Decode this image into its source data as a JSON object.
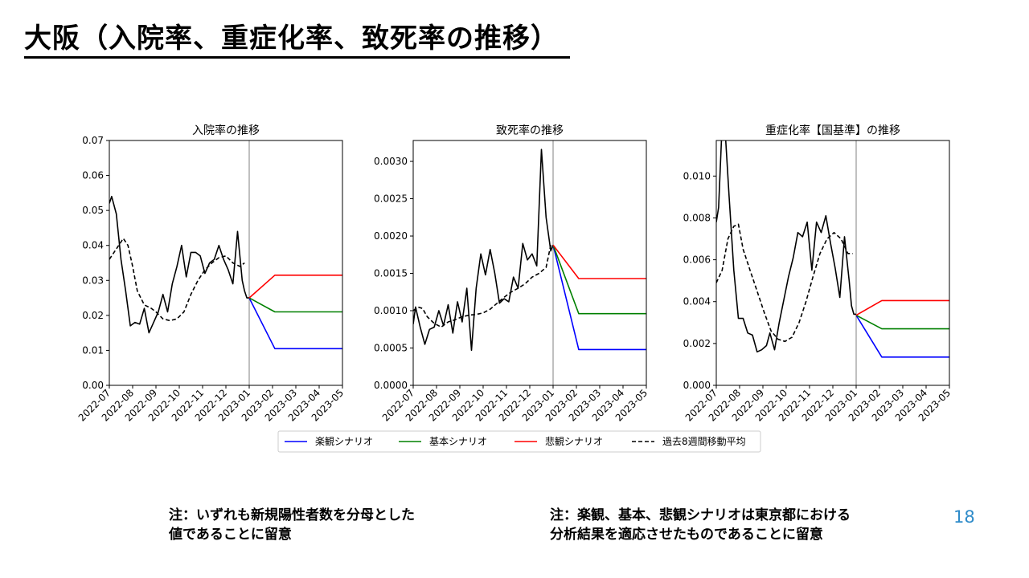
{
  "title": "大阪（入院率、重症化率、致死率の推移）",
  "notes": {
    "left_line1": "注：いずれも新規陽性者数を分母とした",
    "left_line2": "値であることに留意",
    "right_line1": "注：楽観、基本、悲観シナリオは東京都における",
    "right_line2": "分析結果を適応させたものであることに留意"
  },
  "page_number": "18",
  "legend": [
    {
      "label": "楽観シナリオ",
      "color": "#0000ff",
      "dash": false
    },
    {
      "label": "基本シナリオ",
      "color": "#008000",
      "dash": false
    },
    {
      "label": "悲観シナリオ",
      "color": "#ff0000",
      "dash": false
    },
    {
      "label": "過去8週間移動平均",
      "color": "#000000",
      "dash": true
    }
  ],
  "chart_data": [
    {
      "type": "line",
      "title": "入院率の推移",
      "x_ticks": [
        "2022-07",
        "2022-08",
        "2022-09",
        "2022-10",
        "2022-11",
        "2022-12",
        "2023-01",
        "2023-02",
        "2023-03",
        "2023-04",
        "2023-05"
      ],
      "ylim": [
        0,
        0.07
      ],
      "y_ticks": [
        "0.00",
        "0.01",
        "0.02",
        "0.03",
        "0.04",
        "0.05",
        "0.06",
        "0.07"
      ],
      "y_tick_values": [
        0,
        0.01,
        0.02,
        0.03,
        0.04,
        0.05,
        0.06,
        0.07
      ],
      "vline_x": 6.0,
      "series": [
        {
          "role": "actual",
          "color": "#000000",
          "x": [
            0,
            0.1,
            0.3,
            0.5,
            0.7,
            0.9,
            1.1,
            1.3,
            1.5,
            1.7,
            1.9,
            2.1,
            2.3,
            2.5,
            2.7,
            2.9,
            3.1,
            3.3,
            3.5,
            3.7,
            3.9,
            4.1,
            4.3,
            4.5,
            4.7,
            4.9,
            5.1,
            5.3,
            5.5,
            5.7,
            5.8,
            5.9,
            6.0
          ],
          "values": [
            0.052,
            0.054,
            0.049,
            0.036,
            0.027,
            0.017,
            0.018,
            0.0175,
            0.022,
            0.015,
            0.018,
            0.021,
            0.026,
            0.021,
            0.029,
            0.034,
            0.04,
            0.031,
            0.038,
            0.038,
            0.037,
            0.032,
            0.035,
            0.036,
            0.04,
            0.036,
            0.033,
            0.029,
            0.044,
            0.03,
            0.027,
            0.025,
            0.025
          ]
        },
        {
          "role": "moving_average",
          "color": "#000000",
          "x": [
            0,
            0.3,
            0.6,
            0.8,
            1.0,
            1.2,
            1.5,
            1.8,
            2.0,
            2.3,
            2.6,
            2.9,
            3.2,
            3.5,
            3.8,
            4.1,
            4.4,
            4.7,
            5.0,
            5.3,
            5.6,
            5.8
          ],
          "values": [
            0.036,
            0.039,
            0.042,
            0.04,
            0.034,
            0.027,
            0.023,
            0.022,
            0.021,
            0.019,
            0.0185,
            0.019,
            0.021,
            0.026,
            0.03,
            0.033,
            0.035,
            0.0365,
            0.037,
            0.035,
            0.034,
            0.035
          ]
        },
        {
          "role": "optimistic",
          "color": "#0000ff",
          "x": [
            6.0,
            7.1,
            10.0
          ],
          "values": [
            0.025,
            0.0105,
            0.0105
          ]
        },
        {
          "role": "base",
          "color": "#008000",
          "x": [
            6.0,
            7.1,
            10.0
          ],
          "values": [
            0.025,
            0.021,
            0.021
          ]
        },
        {
          "role": "pessimistic",
          "color": "#ff0000",
          "x": [
            6.0,
            7.1,
            10.0
          ],
          "values": [
            0.025,
            0.0315,
            0.0315
          ]
        }
      ]
    },
    {
      "type": "line",
      "title": "致死率の推移",
      "x_ticks": [
        "2022-07",
        "2022-08",
        "2022-09",
        "2022-10",
        "2022-11",
        "2022-12",
        "2023-01",
        "2023-02",
        "2023-03",
        "2023-04",
        "2023-05"
      ],
      "ylim": [
        0,
        0.00328
      ],
      "y_ticks": [
        "0.0000",
        "0.0005",
        "0.0010",
        "0.0015",
        "0.0020",
        "0.0025",
        "0.0030"
      ],
      "y_tick_values": [
        0,
        0.0005,
        0.001,
        0.0015,
        0.002,
        0.0025,
        0.003
      ],
      "vline_x": 6.0,
      "series": [
        {
          "role": "actual",
          "color": "#000000",
          "x": [
            0,
            0.1,
            0.3,
            0.5,
            0.7,
            0.9,
            1.1,
            1.3,
            1.5,
            1.7,
            1.9,
            2.1,
            2.3,
            2.5,
            2.7,
            2.9,
            3.1,
            3.3,
            3.5,
            3.7,
            3.9,
            4.1,
            4.3,
            4.5,
            4.7,
            4.9,
            5.1,
            5.3,
            5.5,
            5.7,
            5.9,
            6.0
          ],
          "values": [
            0.00082,
            0.00105,
            0.00078,
            0.00055,
            0.00075,
            0.00078,
            0.001,
            0.0008,
            0.00108,
            0.0007,
            0.00112,
            0.00085,
            0.0013,
            0.00047,
            0.0013,
            0.00176,
            0.00148,
            0.00182,
            0.0015,
            0.0011,
            0.00116,
            0.00112,
            0.00145,
            0.0013,
            0.0019,
            0.00168,
            0.00176,
            0.0016,
            0.00316,
            0.00225,
            0.0018,
            0.00188
          ]
        },
        {
          "role": "moving_average",
          "color": "#000000",
          "x": [
            0,
            0.2,
            0.4,
            0.6,
            0.9,
            1.2,
            1.5,
            1.8,
            2.1,
            2.4,
            2.7,
            3.0,
            3.3,
            3.6,
            3.9,
            4.2,
            4.5,
            4.8,
            5.1,
            5.4,
            5.7,
            5.9
          ],
          "values": [
            0.001,
            0.00105,
            0.00103,
            0.00092,
            0.00083,
            0.00078,
            0.00085,
            0.00088,
            0.00092,
            0.00094,
            0.00095,
            0.00097,
            0.00102,
            0.0011,
            0.00118,
            0.00125,
            0.0013,
            0.00136,
            0.00145,
            0.0015,
            0.00158,
            0.00188
          ]
        },
        {
          "role": "optimistic",
          "color": "#0000ff",
          "x": [
            6.0,
            7.1,
            10.0
          ],
          "values": [
            0.00188,
            0.00048,
            0.00048
          ]
        },
        {
          "role": "base",
          "color": "#008000",
          "x": [
            6.0,
            7.1,
            10.0
          ],
          "values": [
            0.00188,
            0.00096,
            0.00096
          ]
        },
        {
          "role": "pessimistic",
          "color": "#ff0000",
          "x": [
            6.0,
            7.1,
            10.0
          ],
          "values": [
            0.00188,
            0.00143,
            0.00143
          ]
        }
      ]
    },
    {
      "type": "line",
      "title": "重症化率【国基準】の推移",
      "x_ticks": [
        "2022-07",
        "2022-08",
        "2022-09",
        "2022-10",
        "2022-11",
        "2022-12",
        "2023-01",
        "2023-02",
        "2023-03",
        "2023-04",
        "2023-05"
      ],
      "ylim": [
        0,
        0.0117
      ],
      "y_ticks": [
        "0.000",
        "0.002",
        "0.004",
        "0.006",
        "0.008",
        "0.010"
      ],
      "y_tick_values": [
        0,
        0.002,
        0.004,
        0.006,
        0.008,
        0.01
      ],
      "vline_x": 6.0,
      "series": [
        {
          "role": "actual",
          "color": "#000000",
          "x": [
            0,
            0.1,
            0.25,
            0.4,
            0.55,
            0.75,
            0.95,
            1.15,
            1.35,
            1.55,
            1.75,
            1.95,
            2.15,
            2.3,
            2.5,
            2.7,
            2.9,
            3.1,
            3.3,
            3.5,
            3.7,
            3.9,
            4.1,
            4.3,
            4.5,
            4.7,
            4.9,
            5.1,
            5.3,
            5.5,
            5.7,
            5.8,
            5.9,
            6.0
          ],
          "values": [
            0.0078,
            0.0085,
            0.0125,
            0.0118,
            0.009,
            0.0055,
            0.0032,
            0.0032,
            0.0025,
            0.0024,
            0.0016,
            0.0017,
            0.0019,
            0.0025,
            0.0017,
            0.003,
            0.0041,
            0.0052,
            0.0061,
            0.0073,
            0.0071,
            0.0078,
            0.0055,
            0.0078,
            0.0073,
            0.0081,
            0.0068,
            0.0056,
            0.0042,
            0.0071,
            0.005,
            0.0038,
            0.0034,
            0.0034
          ]
        },
        {
          "role": "moving_average",
          "color": "#000000",
          "x": [
            0,
            0.25,
            0.5,
            0.75,
            0.95,
            1.15,
            1.45,
            1.75,
            2.05,
            2.35,
            2.65,
            2.95,
            3.25,
            3.55,
            3.85,
            4.15,
            4.45,
            4.75,
            5.05,
            5.35,
            5.65,
            5.85
          ],
          "values": [
            0.0049,
            0.0055,
            0.007,
            0.0076,
            0.0077,
            0.0065,
            0.0055,
            0.0045,
            0.0035,
            0.0026,
            0.0022,
            0.0021,
            0.0023,
            0.003,
            0.004,
            0.0052,
            0.0063,
            0.007,
            0.0073,
            0.007,
            0.0063,
            0.0063
          ]
        },
        {
          "role": "optimistic",
          "color": "#0000ff",
          "x": [
            6.0,
            7.1,
            10.0
          ],
          "values": [
            0.00335,
            0.00135,
            0.00135
          ]
        },
        {
          "role": "base",
          "color": "#008000",
          "x": [
            6.0,
            7.1,
            10.0
          ],
          "values": [
            0.00335,
            0.0027,
            0.0027
          ]
        },
        {
          "role": "pessimistic",
          "color": "#ff0000",
          "x": [
            6.0,
            7.1,
            10.0
          ],
          "values": [
            0.00335,
            0.00405,
            0.00405
          ]
        }
      ]
    }
  ]
}
